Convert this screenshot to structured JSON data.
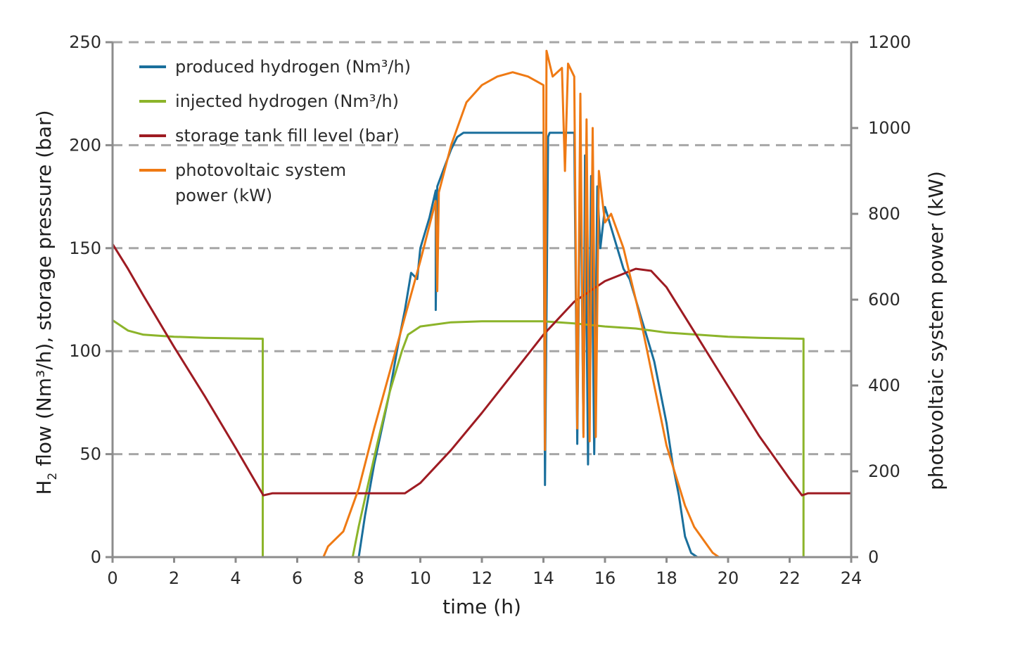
{
  "chart_data": {
    "type": "line",
    "xlabel": "time (h)",
    "ylabel_left_main": "H",
    "ylabel_left_sub": "2",
    "ylabel_left_rest": " flow (Nm³/h), storage pressure (bar)",
    "ylabel_right": "photovoltaic system power (kW)",
    "xlim": [
      0,
      24
    ],
    "ylim_left": [
      0,
      250
    ],
    "ylim_right": [
      0,
      1200
    ],
    "x_ticks": [
      "0",
      "2",
      "4",
      "6",
      "8",
      "10",
      "12",
      "14",
      "16",
      "18",
      "20",
      "22",
      "24"
    ],
    "y_left_ticks": [
      "0",
      "50",
      "100",
      "150",
      "200",
      "250"
    ],
    "y_right_ticks": [
      "0",
      "200",
      "400",
      "600",
      "800",
      "1000",
      "1200"
    ],
    "grid": "dashed horizontal",
    "legend_position": "top-left",
    "legend": [
      {
        "lines": [
          "produced hydrogen (Nm³/h)"
        ],
        "color": "#1a6f9c"
      },
      {
        "lines": [
          "injected hydrogen (Nm³/h)"
        ],
        "color": "#8cb42a"
      },
      {
        "lines": [
          "storage tank fill level (bar)"
        ],
        "color": "#9e1b22"
      },
      {
        "lines": [
          "photovoltaic system",
          "power (kW)"
        ],
        "color": "#ef7a14"
      }
    ],
    "series": [
      {
        "name": "produced hydrogen (Nm³/h)",
        "axis": "left",
        "color": "#1a6f9c",
        "points": [
          [
            0,
            0
          ],
          [
            8.0,
            0
          ],
          [
            8.2,
            20
          ],
          [
            8.5,
            45
          ],
          [
            9.0,
            80
          ],
          [
            9.3,
            105
          ],
          [
            9.5,
            120
          ],
          [
            9.7,
            138
          ],
          [
            9.9,
            135
          ],
          [
            10.0,
            150
          ],
          [
            10.3,
            165
          ],
          [
            10.5,
            178
          ],
          [
            10.5,
            120
          ],
          [
            10.55,
            180
          ],
          [
            10.8,
            190
          ],
          [
            11.0,
            198
          ],
          [
            11.2,
            204
          ],
          [
            11.4,
            206
          ],
          [
            14.0,
            206
          ],
          [
            14.05,
            35
          ],
          [
            14.15,
            204
          ],
          [
            14.2,
            206
          ],
          [
            15.0,
            206
          ],
          [
            15.1,
            55
          ],
          [
            15.2,
            200
          ],
          [
            15.3,
            60
          ],
          [
            15.35,
            195
          ],
          [
            15.45,
            45
          ],
          [
            15.55,
            185
          ],
          [
            15.65,
            50
          ],
          [
            15.75,
            180
          ],
          [
            15.85,
            150
          ],
          [
            16.0,
            170
          ],
          [
            16.2,
            160
          ],
          [
            16.4,
            150
          ],
          [
            16.6,
            140
          ],
          [
            16.8,
            135
          ],
          [
            17.0,
            125
          ],
          [
            17.2,
            115
          ],
          [
            17.4,
            105
          ],
          [
            17.6,
            95
          ],
          [
            17.8,
            80
          ],
          [
            18.0,
            65
          ],
          [
            18.2,
            45
          ],
          [
            18.4,
            30
          ],
          [
            18.6,
            10
          ],
          [
            18.8,
            2
          ],
          [
            19.0,
            0
          ],
          [
            24,
            0
          ]
        ]
      },
      {
        "name": "injected hydrogen (Nm³/h)",
        "axis": "left",
        "color": "#8cb42a",
        "points": [
          [
            0,
            115
          ],
          [
            0.5,
            110
          ],
          [
            1,
            108
          ],
          [
            2,
            107
          ],
          [
            3,
            106.5
          ],
          [
            4,
            106.2
          ],
          [
            4.88,
            106
          ],
          [
            4.88,
            0
          ],
          [
            7.8,
            0
          ],
          [
            8.0,
            15
          ],
          [
            8.3,
            35
          ],
          [
            8.6,
            55
          ],
          [
            9.0,
            80
          ],
          [
            9.4,
            100
          ],
          [
            9.6,
            108
          ],
          [
            10.0,
            112
          ],
          [
            11,
            114
          ],
          [
            12,
            114.5
          ],
          [
            13,
            114.5
          ],
          [
            14,
            114.5
          ],
          [
            15,
            113.5
          ],
          [
            16,
            112
          ],
          [
            17,
            111
          ],
          [
            17.5,
            110
          ],
          [
            18,
            109
          ],
          [
            19,
            108
          ],
          [
            20,
            107
          ],
          [
            21,
            106.5
          ],
          [
            22.45,
            106
          ],
          [
            22.45,
            0
          ],
          [
            24,
            0
          ]
        ]
      },
      {
        "name": "storage tank fill level (bar)",
        "axis": "left",
        "color": "#9e1b22",
        "points": [
          [
            0,
            152
          ],
          [
            0.5,
            140
          ],
          [
            1,
            127
          ],
          [
            2,
            102
          ],
          [
            3,
            78
          ],
          [
            4,
            53
          ],
          [
            4.9,
            30
          ],
          [
            5.2,
            31
          ],
          [
            6,
            31
          ],
          [
            7,
            31
          ],
          [
            8,
            31
          ],
          [
            9,
            31
          ],
          [
            9.5,
            31
          ],
          [
            10,
            36
          ],
          [
            11,
            52
          ],
          [
            12,
            70
          ],
          [
            13,
            89
          ],
          [
            14,
            108
          ],
          [
            15,
            124
          ],
          [
            16,
            134
          ],
          [
            17,
            140
          ],
          [
            17.5,
            139
          ],
          [
            18,
            131
          ],
          [
            19,
            107
          ],
          [
            20,
            83
          ],
          [
            21,
            59
          ],
          [
            22,
            38
          ],
          [
            22.4,
            30
          ],
          [
            22.6,
            31
          ],
          [
            24,
            31
          ]
        ]
      },
      {
        "name": "photovoltaic system power (kW)",
        "axis": "right",
        "color": "#ef7a14",
        "points": [
          [
            0,
            0
          ],
          [
            6.85,
            0
          ],
          [
            7.0,
            25
          ],
          [
            7.5,
            60
          ],
          [
            8.0,
            160
          ],
          [
            8.5,
            300
          ],
          [
            9.0,
            430
          ],
          [
            9.5,
            560
          ],
          [
            10.0,
            690
          ],
          [
            10.5,
            830
          ],
          [
            10.55,
            620
          ],
          [
            10.6,
            850
          ],
          [
            11.0,
            960
          ],
          [
            11.5,
            1060
          ],
          [
            12.0,
            1100
          ],
          [
            12.5,
            1120
          ],
          [
            13.0,
            1130
          ],
          [
            13.5,
            1120
          ],
          [
            14.0,
            1100
          ],
          [
            14.05,
            250
          ],
          [
            14.1,
            1180
          ],
          [
            14.3,
            1120
          ],
          [
            14.6,
            1140
          ],
          [
            14.7,
            900
          ],
          [
            14.8,
            1150
          ],
          [
            15.0,
            1120
          ],
          [
            15.1,
            300
          ],
          [
            15.2,
            1080
          ],
          [
            15.3,
            280
          ],
          [
            15.4,
            1020
          ],
          [
            15.5,
            270
          ],
          [
            15.6,
            1000
          ],
          [
            15.7,
            280
          ],
          [
            15.8,
            900
          ],
          [
            16.0,
            780
          ],
          [
            16.2,
            800
          ],
          [
            16.4,
            760
          ],
          [
            16.6,
            720
          ],
          [
            16.8,
            660
          ],
          [
            17.0,
            600
          ],
          [
            17.2,
            540
          ],
          [
            17.4,
            470
          ],
          [
            17.6,
            400
          ],
          [
            17.8,
            330
          ],
          [
            18.0,
            260
          ],
          [
            18.3,
            190
          ],
          [
            18.6,
            120
          ],
          [
            18.9,
            70
          ],
          [
            19.2,
            40
          ],
          [
            19.5,
            10
          ],
          [
            19.7,
            0
          ],
          [
            24,
            0
          ]
        ]
      }
    ]
  }
}
